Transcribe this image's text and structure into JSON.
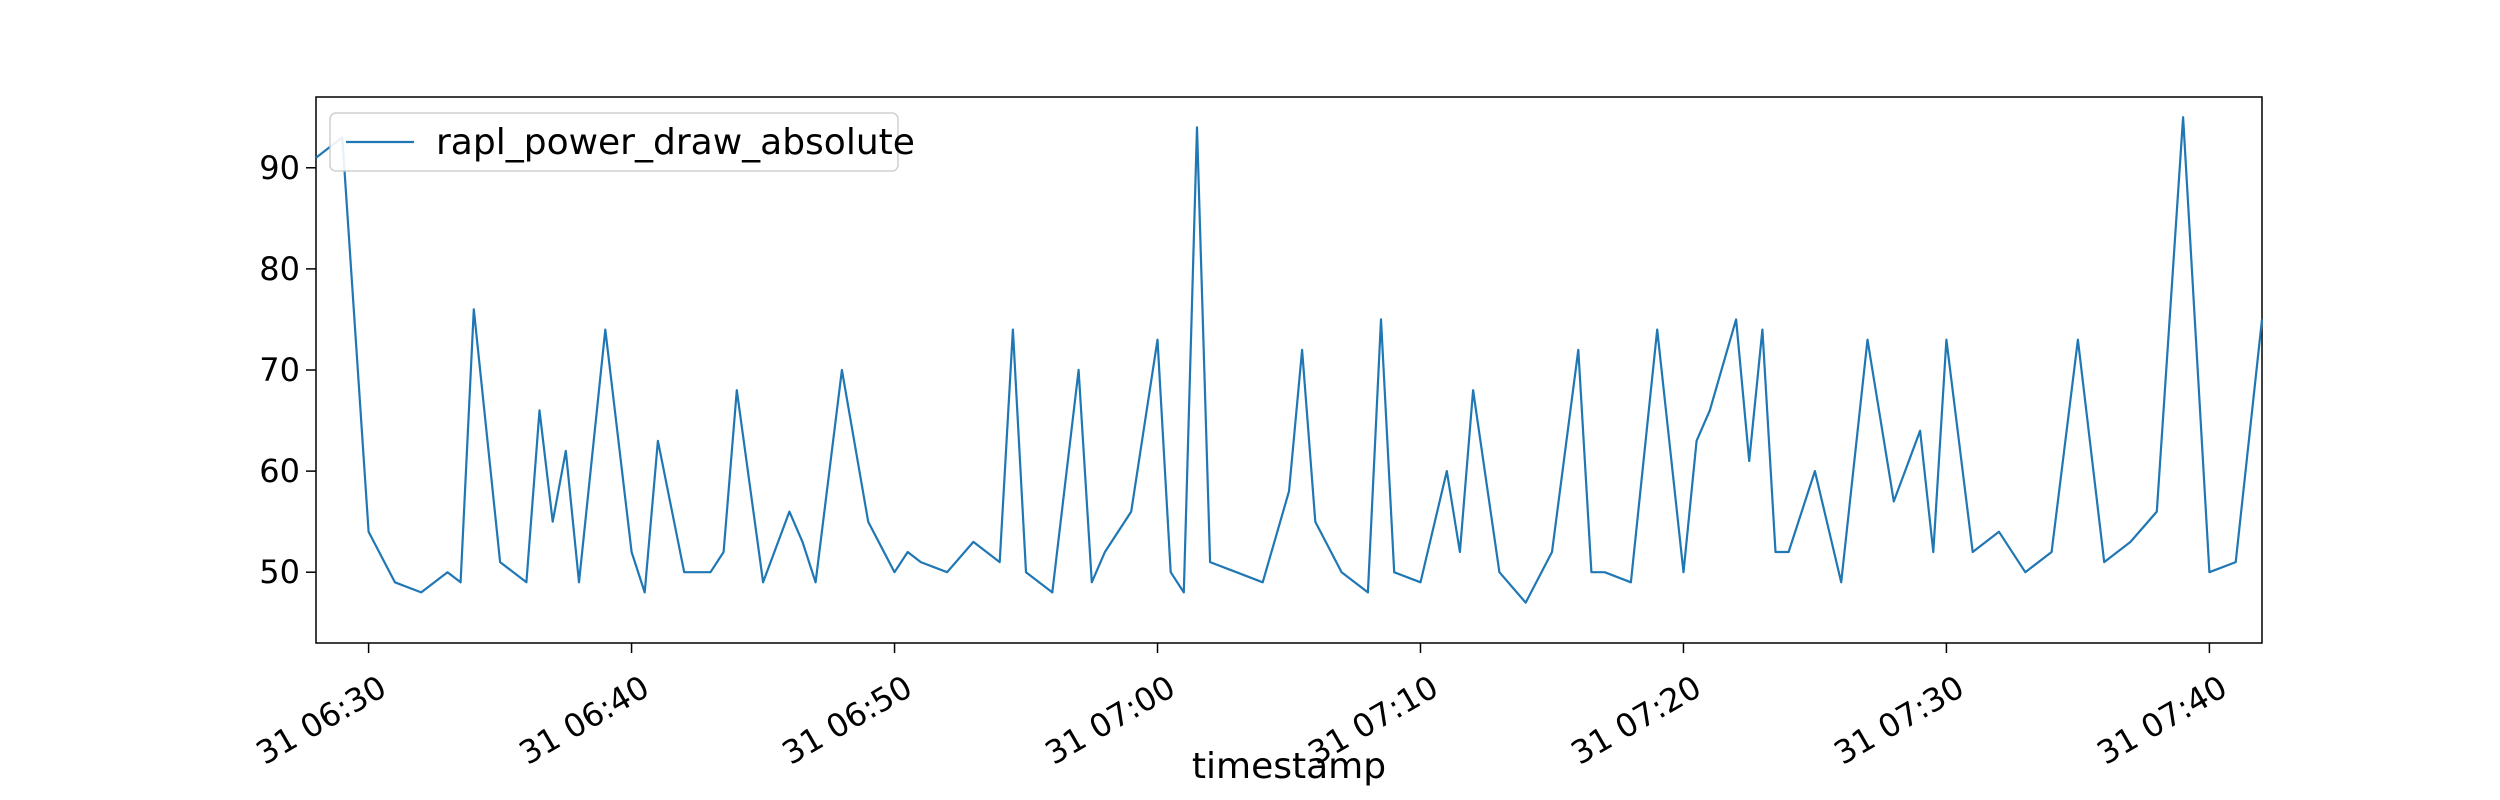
{
  "chart_data": {
    "type": "line",
    "title": "",
    "xlabel": "timestamp",
    "ylabel": "",
    "x_axis": {
      "kind": "datetime",
      "start": "31 06:28",
      "end": "31 07:42",
      "ticks": [
        "31 06:30",
        "31 06:40",
        "31 06:50",
        "31 07:00",
        "31 07:10",
        "31 07:20",
        "31 07:30",
        "31 07:40"
      ],
      "tick_label_rotation": "30deg"
    },
    "y_axis": {
      "ylim": [
        43,
        97
      ],
      "ticks": [
        50,
        60,
        70,
        80,
        90
      ]
    },
    "grid": false,
    "legend": {
      "position": "top-left",
      "entries": [
        "rapl_power_draw_absolute"
      ]
    },
    "series": [
      {
        "name": "rapl_power_draw_absolute",
        "color": "#1f77b4",
        "x": [
          "06:28",
          "06:29",
          "06:30",
          "06:31",
          "06:32",
          "06:33",
          "06:33.5",
          "06:34",
          "06:35",
          "06:36",
          "06:36.5",
          "06:37",
          "06:37.5",
          "06:38",
          "06:39",
          "06:40",
          "06:40.5",
          "06:41",
          "06:42",
          "06:43",
          "06:43.5",
          "06:44",
          "06:45",
          "06:46",
          "06:46.5",
          "06:47",
          "06:48",
          "06:49",
          "06:50",
          "06:50.5",
          "06:51",
          "06:52",
          "06:53",
          "06:54",
          "06:54.5",
          "06:55",
          "06:56",
          "06:57",
          "06:57.5",
          "06:58",
          "06:59",
          "07:00",
          "07:00.5",
          "07:01",
          "07:01.5",
          "07:02",
          "07:03",
          "07:04",
          "07:05",
          "07:05.5",
          "07:06",
          "07:07",
          "07:08",
          "07:08.5",
          "07:09",
          "07:10",
          "07:11",
          "07:11.5",
          "07:12",
          "07:13",
          "07:14",
          "07:15",
          "07:16",
          "07:16.5",
          "07:17",
          "07:18",
          "07:19",
          "07:20",
          "07:20.5",
          "07:21",
          "07:22",
          "07:22.5",
          "07:23",
          "07:23.5",
          "07:24",
          "07:25",
          "07:26",
          "07:27",
          "07:28",
          "07:29",
          "07:29.5",
          "07:30",
          "07:31",
          "07:32",
          "07:33",
          "07:34",
          "07:35",
          "07:36",
          "07:37",
          "07:38",
          "07:39",
          "07:40",
          "07:41",
          "07:42"
        ],
        "y": [
          91,
          93,
          54,
          49,
          48,
          50,
          49,
          76,
          51,
          49,
          66,
          55,
          62,
          49,
          74,
          52,
          48,
          63,
          50,
          50,
          52,
          68,
          49,
          56,
          53,
          49,
          70,
          55,
          50,
          52,
          51,
          50,
          53,
          51,
          74,
          50,
          48,
          70,
          49,
          52,
          56,
          73,
          50,
          48,
          94,
          51,
          50,
          49,
          58,
          72,
          55,
          50,
          48,
          75,
          50,
          49,
          60,
          52,
          68,
          50,
          47,
          52,
          72,
          50,
          50,
          49,
          74,
          50,
          63,
          66,
          75,
          61,
          74,
          52,
          52,
          60,
          49,
          73,
          57,
          64,
          52,
          73,
          52,
          54,
          50,
          52,
          73,
          51,
          53,
          56,
          95,
          50,
          51,
          75
        ]
      }
    ]
  }
}
